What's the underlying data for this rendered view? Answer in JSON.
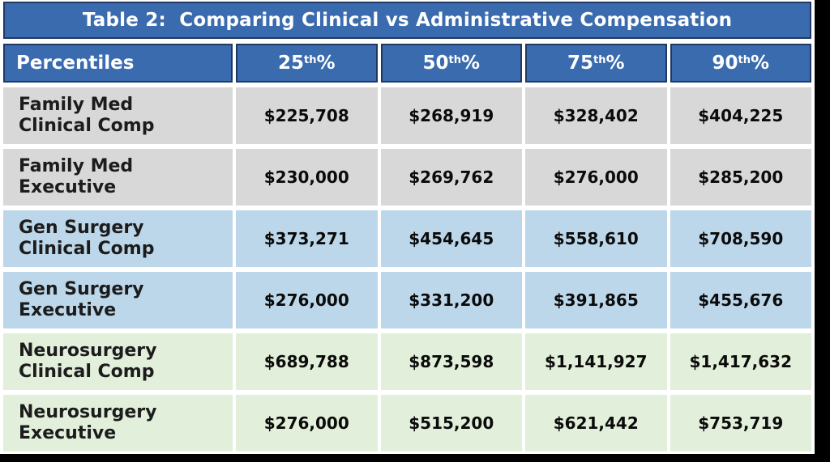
{
  "colors": {
    "header_blue": "#3A6BAE",
    "header_border": "#1F3864",
    "header_text": "#FFFFFF",
    "row_gray": "#D8D8D8",
    "row_blue": "#BDD7EA",
    "row_green": "#E2EFDA",
    "frame_black": "#000000",
    "label_text": "#1C1C1C",
    "value_text": "#0B0B0B"
  },
  "chart_data": {
    "type": "table",
    "title": "Table 2:  Comparing Clinical vs Administrative Compensation",
    "columns": [
      "Percentiles",
      "25th%",
      "50th%",
      "75th%",
      "90th%"
    ],
    "header": {
      "col0": "Percentiles",
      "cols": [
        {
          "base": "25",
          "sup": "th",
          "suffix": "%"
        },
        {
          "base": "50",
          "sup": "th",
          "suffix": "%"
        },
        {
          "base": "75",
          "sup": "th",
          "suffix": "%"
        },
        {
          "base": "90",
          "sup": "th",
          "suffix": "%"
        }
      ]
    },
    "rows": [
      {
        "label1": "Family Med",
        "label2": "Clinical Comp",
        "group": "gray",
        "values": [
          "$225,708",
          "$268,919",
          "$328,402",
          "$404,225"
        ]
      },
      {
        "label1": "Family Med",
        "label2": "Executive",
        "group": "gray",
        "values": [
          "$230,000",
          "$269,762",
          "$276,000",
          "$285,200"
        ]
      },
      {
        "label1": "Gen Surgery",
        "label2": "Clinical Comp",
        "group": "blue",
        "values": [
          "$373,271",
          "$454,645",
          "$558,610",
          "$708,590"
        ]
      },
      {
        "label1": "Gen Surgery",
        "label2": "Executive",
        "group": "blue",
        "values": [
          "$276,000",
          "$331,200",
          "$391,865",
          "$455,676"
        ]
      },
      {
        "label1": "Neurosurgery",
        "label2": "Clinical Comp",
        "group": "green",
        "values": [
          "$689,788",
          "$873,598",
          "$1,141,927",
          "$1,417,632"
        ]
      },
      {
        "label1": "Neurosurgery",
        "label2": "Executive",
        "group": "green",
        "values": [
          "$276,000",
          "$515,200",
          "$621,442",
          "$753,719"
        ]
      }
    ]
  }
}
